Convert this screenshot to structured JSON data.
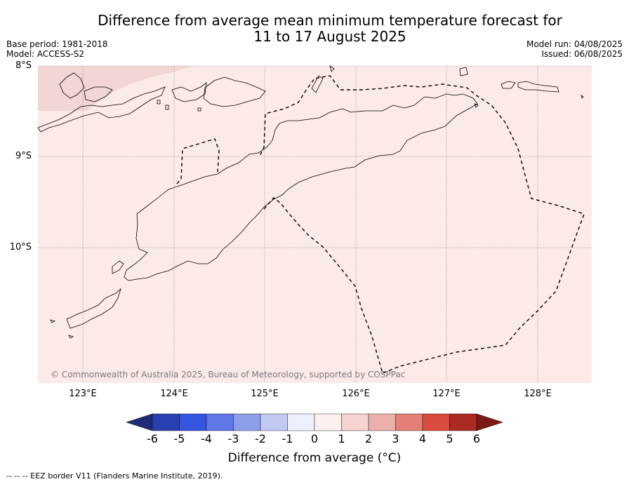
{
  "title_line1": "Difference from average mean minimum temperature forecast for",
  "title_line2": "11 to 17 August 2025",
  "base_period": "Base period: 1981-2018",
  "model": "Model: ACCESS-S2",
  "model_run": "Model run: 04/08/2025",
  "issued": "Issued: 06/08/2025",
  "lat_labels": [
    "8°S",
    "9°S",
    "10°S"
  ],
  "lon_labels": [
    "123°E",
    "124°E",
    "125°E",
    "126°E",
    "127°E",
    "128°E"
  ],
  "copyright": "© Commonwealth of Australia 2025, Bureau of Meteorology, supported by COSPPac",
  "colorbar": {
    "ticks": [
      "-6",
      "-5",
      "-4",
      "-3",
      "-2",
      "-1",
      "0",
      "1",
      "2",
      "3",
      "4",
      "5",
      "6"
    ],
    "colors": [
      "#1f2a78",
      "#2840b2",
      "#3556e0",
      "#5f78e6",
      "#8e9fe9",
      "#c1c9f2",
      "#eceffc",
      "#fdf0ef",
      "#f4d3d0",
      "#ecb0aa",
      "#e47f76",
      "#d94a3f",
      "#ab2a22",
      "#7a1a14"
    ],
    "label": "Difference from average (°C)"
  },
  "map": {
    "background_color": "#fbeae8",
    "warmer_patch_color": "#f2d6d3",
    "eez_style": "dashed"
  },
  "footer": "-- -- -- EEZ border V11 (Flanders Marine Institute, 2019)."
}
